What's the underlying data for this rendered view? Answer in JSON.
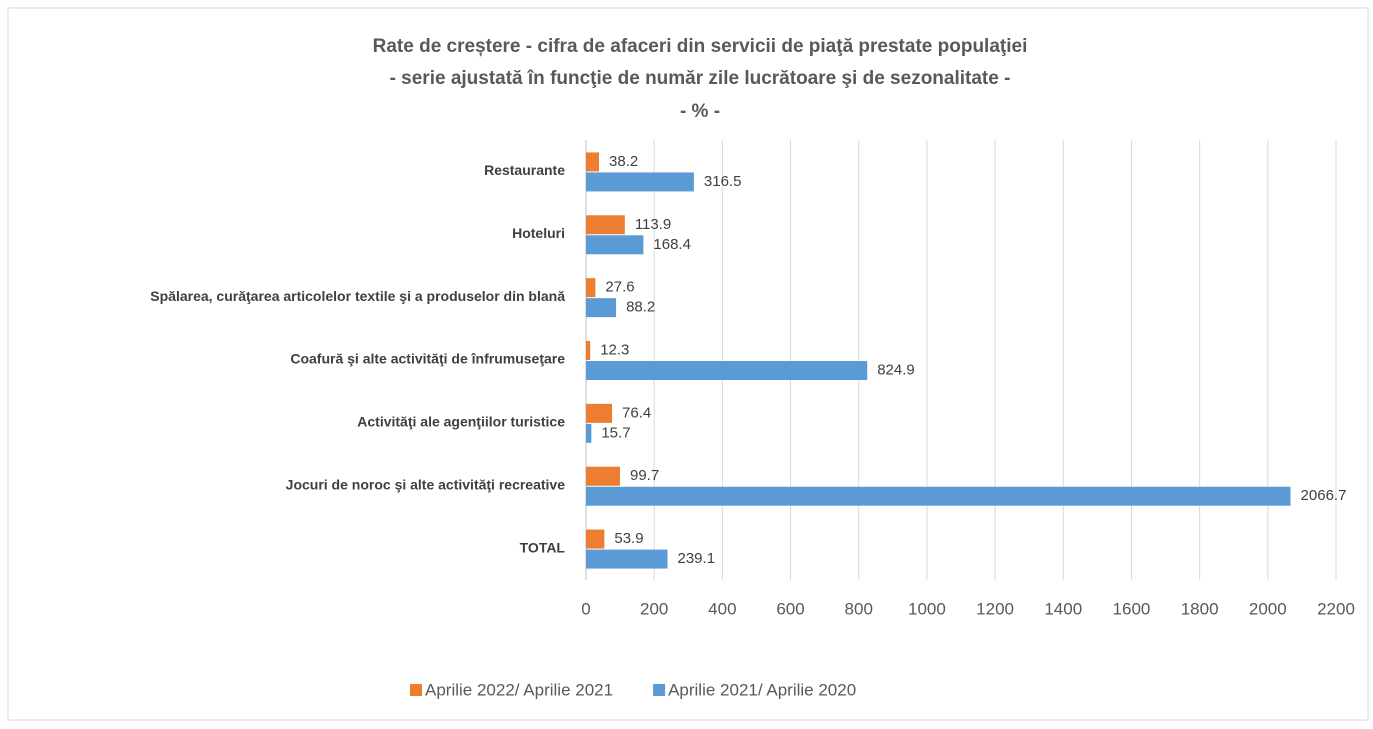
{
  "chart_data": {
    "type": "hbar",
    "title": "Rate de creștere - cifra de afaceri din servicii de piaţă prestate populaţiei",
    "subtitle": "- serie ajustată în funcţie de număr zile lucrătoare şi de sezonalitate -",
    "unit_note": "- % -",
    "categories": [
      "Restaurante",
      "Hoteluri",
      "Spălarea, curăţarea articolelor textile şi a produselor din blană",
      "Coafură şi alte activităţi de înfrumuseţare",
      "Activităţi ale agenţiilor turistice",
      "Jocuri de noroc şi alte activităţi recreative",
      "TOTAL"
    ],
    "series": [
      {
        "name": "Aprilie 2022/ Aprilie 2021",
        "color": "#ed7d31",
        "values": [
          38.2,
          113.9,
          27.6,
          12.3,
          76.4,
          99.7,
          53.9
        ]
      },
      {
        "name": "Aprilie 2021/ Aprilie 2020",
        "color": "#5b9bd5",
        "values": [
          316.5,
          168.4,
          88.2,
          824.9,
          15.7,
          2066.7,
          239.1
        ]
      }
    ],
    "xlim": [
      0,
      2200
    ],
    "xticks": [
      0,
      200,
      400,
      600,
      800,
      1000,
      1200,
      1400,
      1600,
      1800,
      2000,
      2200
    ],
    "grid": true,
    "legend": "bottom"
  }
}
